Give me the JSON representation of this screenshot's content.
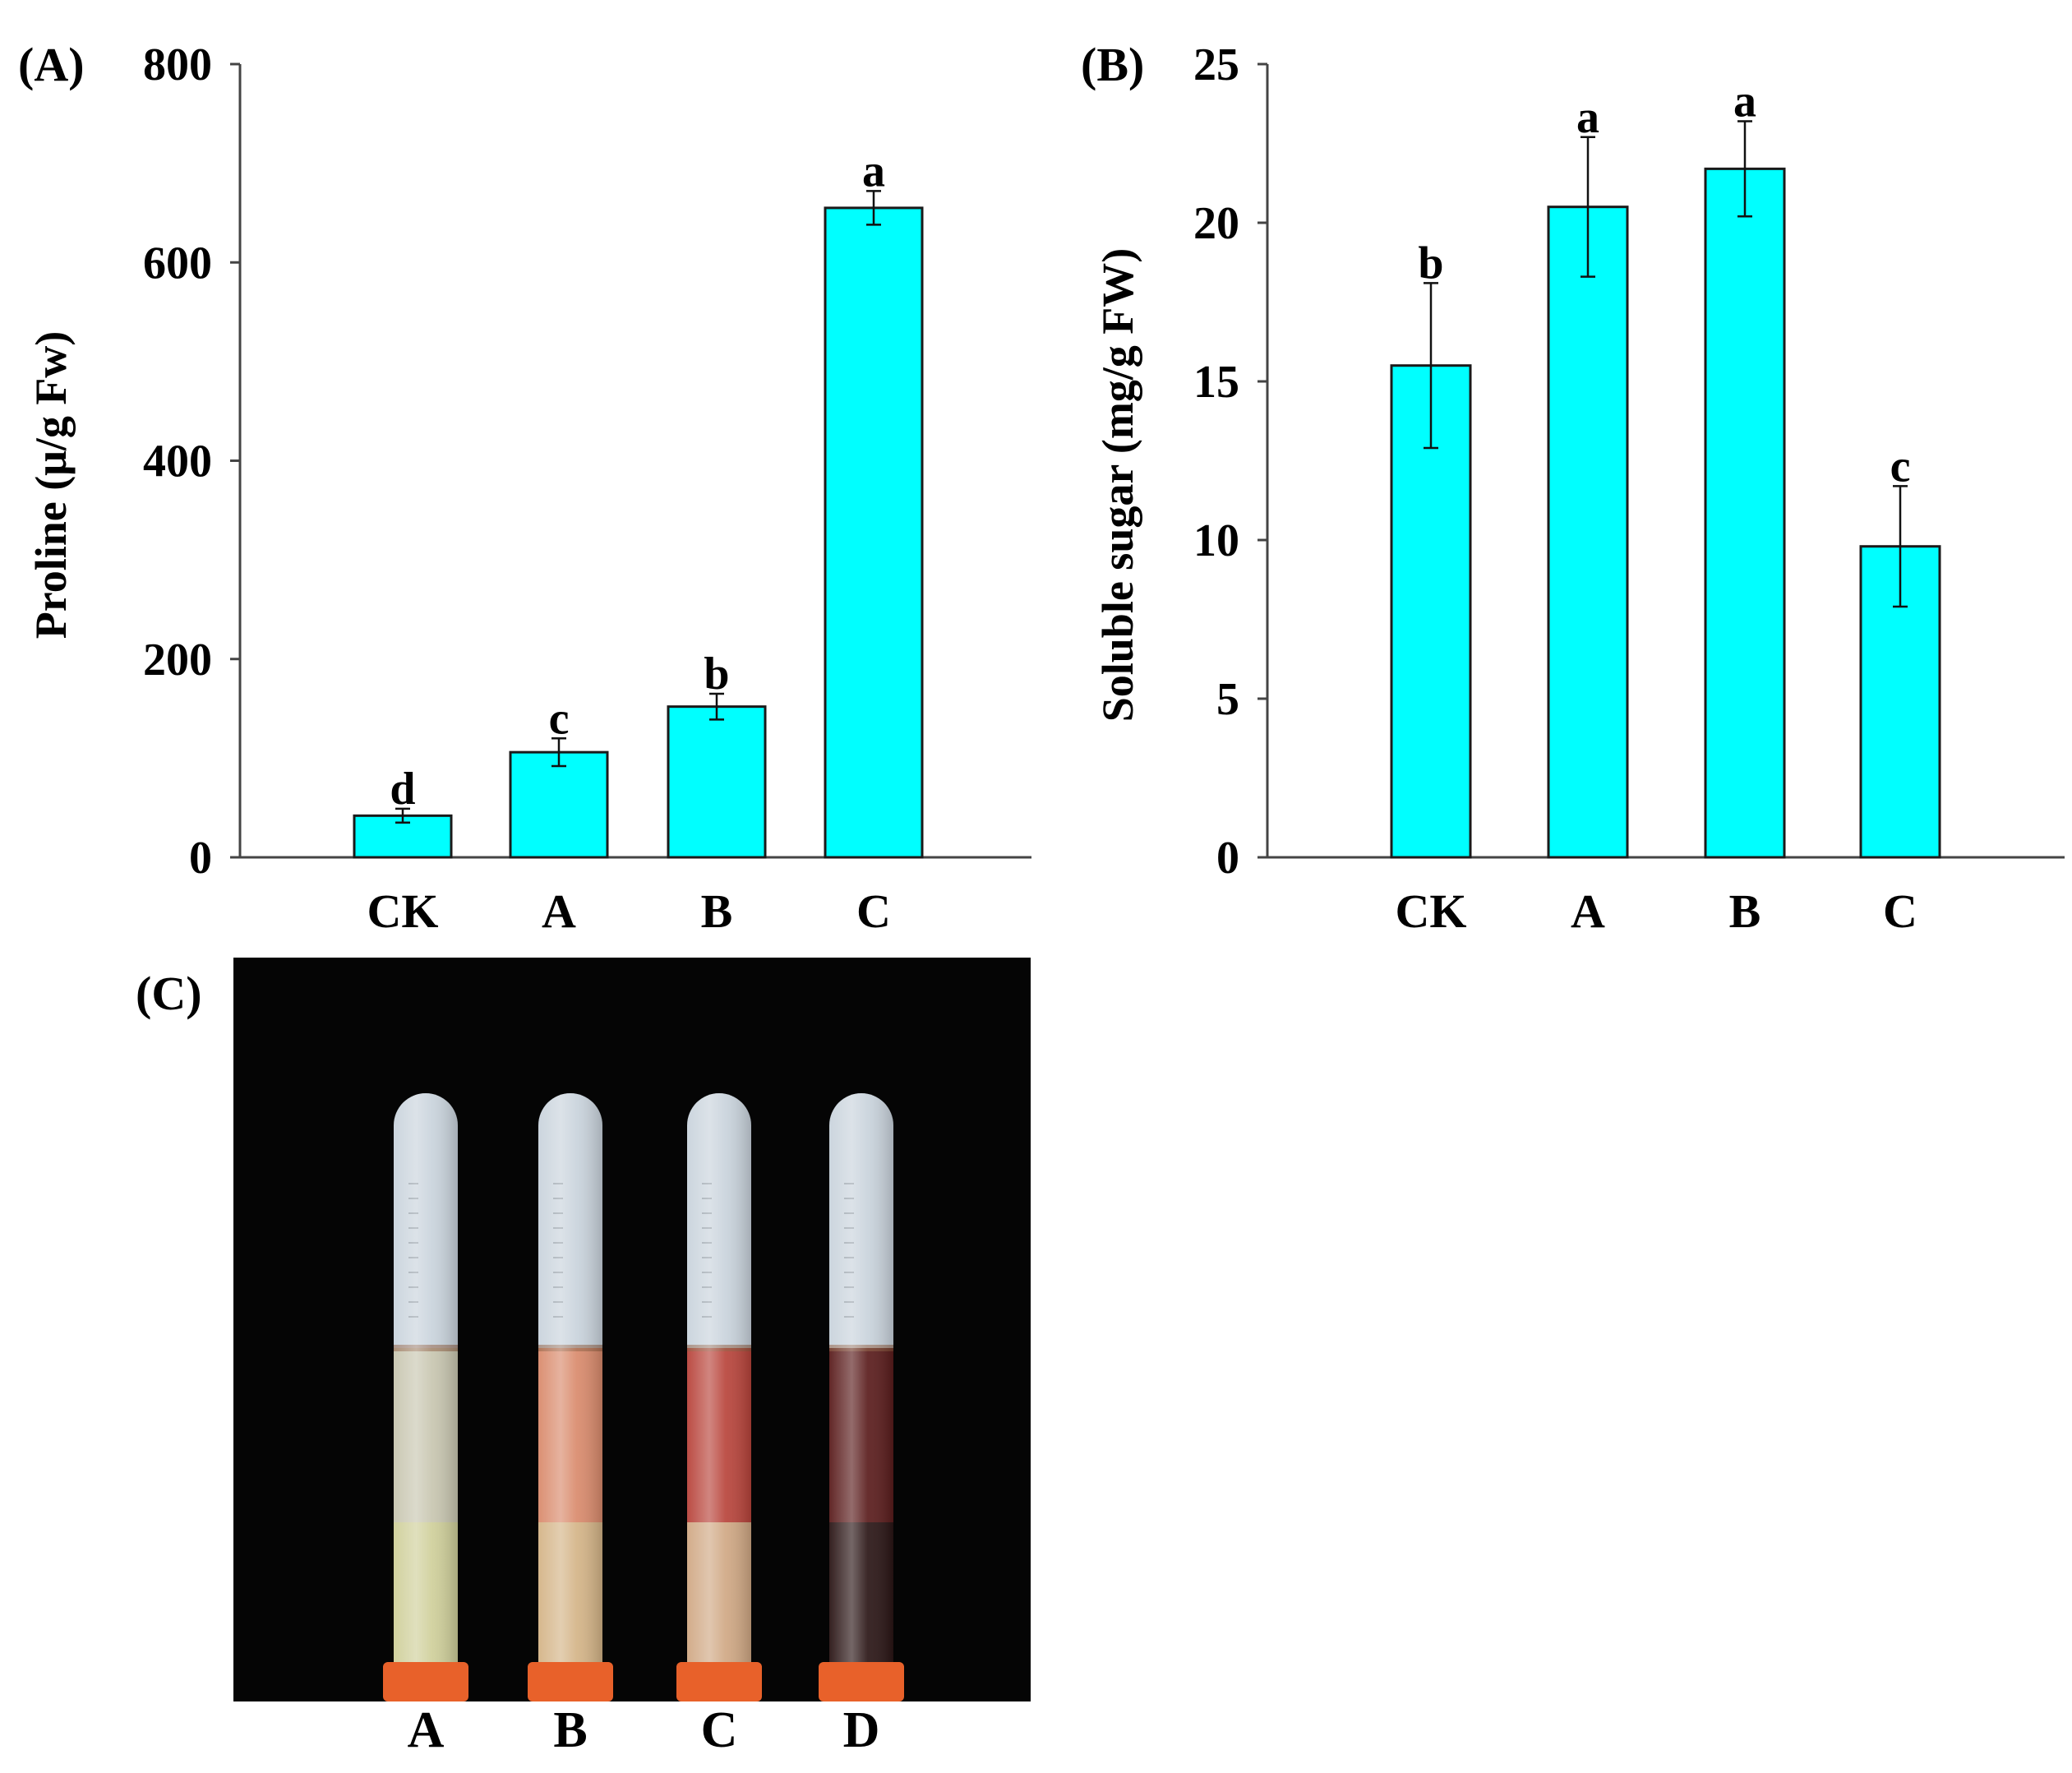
{
  "colors": {
    "bar_fill": "#00FFFF",
    "bar_stroke": "#1a1a1a",
    "photo_bg": "#050505",
    "tube_glass": "#c9d3dc",
    "tube_cap": "#e8612a"
  },
  "chart_data": [
    {
      "type": "bar",
      "panel_label": "(A)",
      "title": "",
      "xlabel": "",
      "ylabel": "Proline (μ/g Fw)",
      "ylim": [
        0,
        800
      ],
      "yticks": [
        0,
        200,
        400,
        600,
        800
      ],
      "categories": [
        "CK",
        "A",
        "B",
        "C"
      ],
      "values": [
        42,
        106,
        152,
        655
      ],
      "errors": [
        7,
        14,
        13,
        17
      ],
      "significance": [
        "d",
        "c",
        "b",
        "a"
      ],
      "grid": false,
      "legend": "none"
    },
    {
      "type": "bar",
      "panel_label": "(B)",
      "title": "",
      "xlabel": "",
      "ylabel": "Soluble sugar (mg/g FW)",
      "ylim": [
        0,
        25
      ],
      "yticks": [
        0,
        5,
        10,
        15,
        20,
        25
      ],
      "categories": [
        "CK",
        "A",
        "B",
        "C"
      ],
      "values": [
        15.5,
        20.5,
        21.7,
        9.8
      ],
      "errors": [
        2.6,
        2.2,
        1.5,
        1.9
      ],
      "significance": [
        "b",
        "a",
        "a",
        "c"
      ],
      "grid": false,
      "legend": "none"
    }
  ],
  "photo_panel": {
    "panel_label": "(C)",
    "tubes": [
      {
        "label": "A",
        "upper_color": "#c8c6b0",
        "lower_color": "#cfcf9a"
      },
      {
        "label": "B",
        "upper_color": "#d98a6c",
        "lower_color": "#d4b487"
      },
      {
        "label": "C",
        "upper_color": "#b8443b",
        "lower_color": "#d0a884"
      },
      {
        "label": "D",
        "upper_color": "#5a1c1c",
        "lower_color": "#2a1515"
      }
    ]
  }
}
